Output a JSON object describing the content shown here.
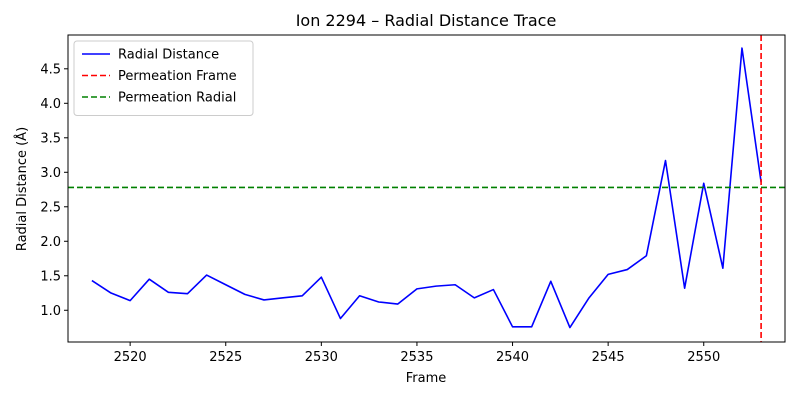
{
  "chart_data": {
    "type": "line",
    "title": "Ion 2294 – Radial Distance Trace",
    "xlabel": "Frame",
    "ylabel": "Radial Distance (Å)",
    "xlim": [
      2516.75,
      2554.25
    ],
    "ylim": [
      0.54,
      4.99
    ],
    "xticks": [
      2520,
      2525,
      2530,
      2535,
      2540,
      2545,
      2550
    ],
    "yticks": [
      1.0,
      1.5,
      2.0,
      2.5,
      3.0,
      3.5,
      4.0,
      4.5
    ],
    "grid": false,
    "legend_position": "top-left",
    "series": [
      {
        "name": "Radial Distance",
        "color": "#0000ff",
        "x": [
          2518,
          2519,
          2520,
          2521,
          2522,
          2523,
          2524,
          2525,
          2526,
          2527,
          2528,
          2529,
          2530,
          2531,
          2532,
          2533,
          2534,
          2535,
          2536,
          2537,
          2538,
          2539,
          2540,
          2541,
          2542,
          2543,
          2544,
          2545,
          2546,
          2547,
          2548,
          2549,
          2550,
          2551,
          2552,
          2553
        ],
        "y": [
          1.43,
          1.25,
          1.14,
          1.45,
          1.26,
          1.24,
          1.51,
          1.37,
          1.23,
          1.15,
          1.18,
          1.21,
          1.48,
          0.88,
          1.21,
          1.12,
          1.09,
          1.31,
          1.35,
          1.37,
          1.18,
          1.3,
          0.76,
          0.76,
          1.42,
          0.75,
          1.18,
          1.52,
          1.59,
          1.79,
          3.17,
          1.32,
          2.84,
          1.61,
          4.8,
          2.86
        ]
      }
    ],
    "reference_lines": [
      {
        "name": "Permeation Frame",
        "orientation": "vertical",
        "value": 2553,
        "color": "#ff0000",
        "style": "dashed"
      },
      {
        "name": "Permeation Radial",
        "orientation": "horizontal",
        "value": 2.78,
        "color": "#008000",
        "style": "dashed"
      }
    ]
  }
}
